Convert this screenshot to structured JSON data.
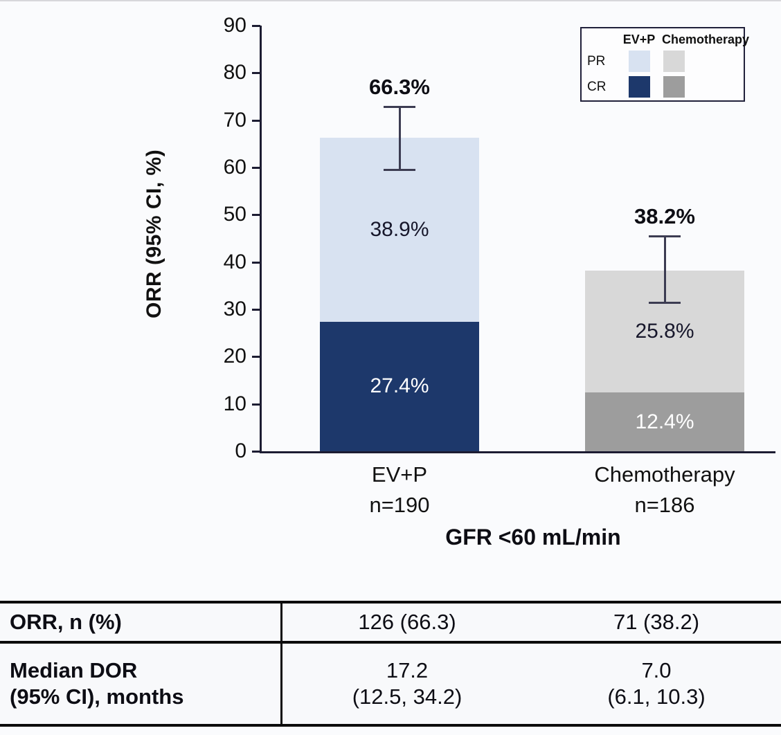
{
  "page": {
    "background": "#fafbfd"
  },
  "chart_data": {
    "type": "stacked-bar",
    "title": "",
    "ylabel": "ORR (95% CI, %)",
    "xlabel": "GFR <60 mL/min",
    "ylim": [
      0,
      90
    ],
    "ytick_step": 10,
    "yticks": [
      0,
      10,
      20,
      30,
      40,
      50,
      60,
      70,
      80,
      90
    ],
    "categories": [
      "EV+P",
      "Chemotherapy"
    ],
    "groups": [
      {
        "label": "EV+P",
        "sublabel": "n=190",
        "total": 66.3,
        "total_label": "66.3%",
        "cr": 27.4,
        "pr": 38.9,
        "cr_label": "27.4%",
        "pr_label": "38.9%",
        "ci_low": 59.3,
        "ci_high": 73.0,
        "pr_color": "#d8e2f1",
        "cr_color": "#1d386b"
      },
      {
        "label": "Chemotherapy",
        "sublabel": "n=186",
        "total": 38.2,
        "total_label": "38.2%",
        "cr": 12.4,
        "pr": 25.8,
        "cr_label": "12.4%",
        "pr_label": "25.8%",
        "ci_low": 31.2,
        "ci_high": 45.6,
        "pr_color": "#d8d8d8",
        "cr_color": "#9d9d9d"
      }
    ],
    "legend": {
      "columns": [
        "EV+P",
        "Chemotherapy"
      ],
      "rows": [
        "PR",
        "CR"
      ],
      "swatches": [
        [
          "#d8e2f1",
          "#d8d8d8"
        ],
        [
          "#1d386b",
          "#9d9d9d"
        ]
      ],
      "position": "top-right"
    },
    "grid": false
  },
  "table": {
    "row1": {
      "label": "ORR, n (%)",
      "col1": "126 (66.3)",
      "col2": "71 (38.2)"
    },
    "row2": {
      "label_line1": "Median DOR",
      "label_line2": "(95% CI), months",
      "col1_line1": "17.2",
      "col1_line2": "(12.5, 34.2)",
      "col2_line1": "7.0",
      "col2_line2": "(6.1, 10.3)"
    }
  }
}
